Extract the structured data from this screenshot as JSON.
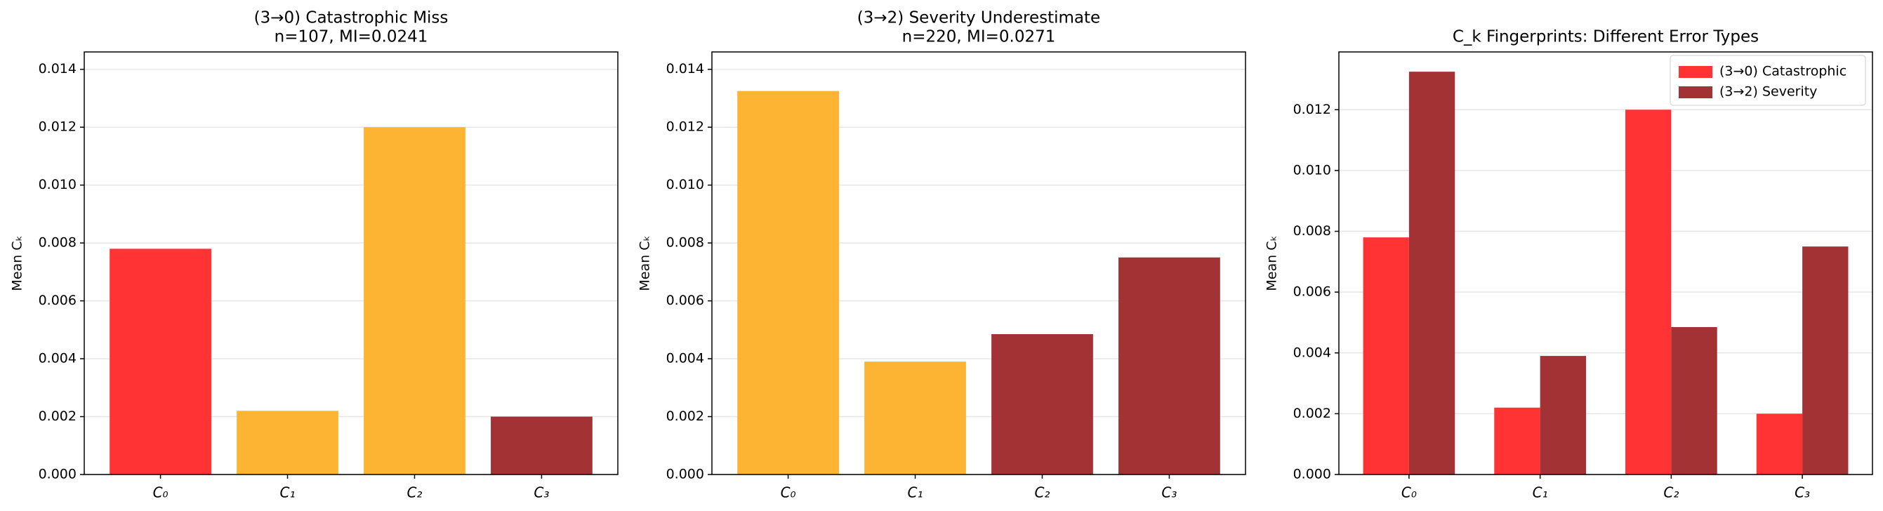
{
  "chart_data": [
    {
      "type": "bar",
      "title": "(3→0) Catastrophic Miss",
      "subtitle": "n=107, MI=0.0241",
      "ylabel": "Mean Cₖ",
      "categories": [
        "C₀",
        "C₁",
        "C₂",
        "C₃"
      ],
      "values": [
        0.0078,
        0.0022,
        0.012,
        0.002
      ],
      "colors": [
        "#ff3333",
        "#fdb433",
        "#fdb433",
        "#a33234"
      ],
      "ylim": [
        0,
        0.0146
      ],
      "yticks": [
        {
          "value": 0,
          "label": "0.000"
        },
        {
          "value": 0.002,
          "label": "0.002"
        },
        {
          "value": 0.004,
          "label": "0.004"
        },
        {
          "value": 0.006,
          "label": "0.006"
        },
        {
          "value": 0.008,
          "label": "0.008"
        },
        {
          "value": 0.01,
          "label": "0.010"
        },
        {
          "value": 0.012,
          "label": "0.012"
        },
        {
          "value": 0.014,
          "label": "0.014"
        }
      ],
      "grid": true
    },
    {
      "type": "bar",
      "title": "(3→2) Severity Underestimate",
      "subtitle": "n=220, MI=0.0271",
      "ylabel": "Mean Cₖ",
      "categories": [
        "C₀",
        "C₁",
        "C₂",
        "C₃"
      ],
      "values": [
        0.01325,
        0.0039,
        0.00485,
        0.0075
      ],
      "colors": [
        "#fdb433",
        "#fdb433",
        "#a33234",
        "#a33234"
      ],
      "ylim": [
        0,
        0.0146
      ],
      "yticks": [
        {
          "value": 0,
          "label": "0.000"
        },
        {
          "value": 0.002,
          "label": "0.002"
        },
        {
          "value": 0.004,
          "label": "0.004"
        },
        {
          "value": 0.006,
          "label": "0.006"
        },
        {
          "value": 0.008,
          "label": "0.008"
        },
        {
          "value": 0.01,
          "label": "0.010"
        },
        {
          "value": 0.012,
          "label": "0.012"
        },
        {
          "value": 0.014,
          "label": "0.014"
        }
      ],
      "grid": true
    },
    {
      "type": "grouped_bar",
      "title": "C_k Fingerprints: Different Error Types",
      "ylabel": "Mean Cₖ",
      "categories": [
        "C₀",
        "C₁",
        "C₂",
        "C₃"
      ],
      "series": [
        {
          "name": "(3→0) Catastrophic",
          "color": "#ff3333",
          "values": [
            0.0078,
            0.0022,
            0.012,
            0.002
          ]
        },
        {
          "name": "(3→2) Severity",
          "color": "#a33234",
          "values": [
            0.01325,
            0.0039,
            0.00485,
            0.0075
          ]
        }
      ],
      "ylim": [
        0,
        0.0139
      ],
      "yticks": [
        {
          "value": 0,
          "label": "0.000"
        },
        {
          "value": 0.002,
          "label": "0.002"
        },
        {
          "value": 0.004,
          "label": "0.004"
        },
        {
          "value": 0.006,
          "label": "0.006"
        },
        {
          "value": 0.008,
          "label": "0.008"
        },
        {
          "value": 0.01,
          "label": "0.010"
        },
        {
          "value": 0.012,
          "label": "0.012"
        }
      ],
      "grid": true,
      "legend": "upper-right"
    }
  ]
}
